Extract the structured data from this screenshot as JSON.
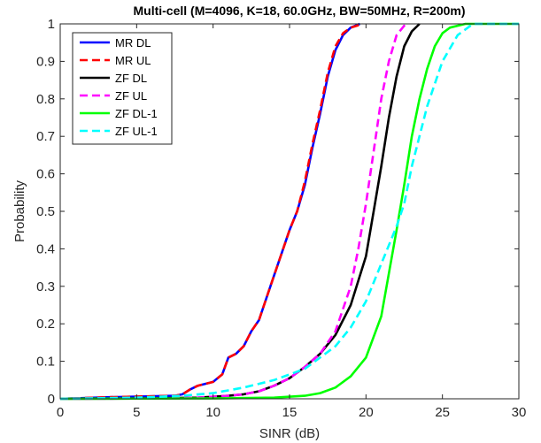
{
  "chart_data": {
    "type": "line",
    "title": "Multi-cell (M=4096, K=18, 60.0GHz, BW=50MHz, R=200m)",
    "xlabel": "SINR (dB)",
    "ylabel": "Probability",
    "xlim": [
      0,
      30
    ],
    "ylim": [
      0,
      1
    ],
    "xticks": [
      "0",
      "5",
      "10",
      "15",
      "20",
      "25",
      "30"
    ],
    "yticks": [
      "0",
      "0.1",
      "0.2",
      "0.3",
      "0.4",
      "0.5",
      "0.6",
      "0.7",
      "0.8",
      "0.9",
      "1"
    ],
    "grid": false,
    "legend_position": "top-left",
    "series": [
      {
        "name": "MR DL",
        "color": "#0000ff",
        "dash": "solid",
        "points": [
          [
            0,
            0
          ],
          [
            3,
            0.004
          ],
          [
            5,
            0.006
          ],
          [
            7.5,
            0.008
          ],
          [
            8,
            0.012
          ],
          [
            8.5,
            0.025
          ],
          [
            9,
            0.035
          ],
          [
            10,
            0.045
          ],
          [
            10.6,
            0.065
          ],
          [
            11,
            0.11
          ],
          [
            11.5,
            0.12
          ],
          [
            12,
            0.14
          ],
          [
            12.5,
            0.18
          ],
          [
            13,
            0.21
          ],
          [
            13.5,
            0.27
          ],
          [
            14,
            0.33
          ],
          [
            14.5,
            0.39
          ],
          [
            15,
            0.45
          ],
          [
            15.5,
            0.5
          ],
          [
            16,
            0.57
          ],
          [
            16.5,
            0.67
          ],
          [
            17,
            0.76
          ],
          [
            17.5,
            0.86
          ],
          [
            18,
            0.93
          ],
          [
            18.5,
            0.97
          ],
          [
            19,
            0.99
          ],
          [
            19.6,
            1
          ]
        ]
      },
      {
        "name": "MR UL",
        "color": "#ff0000",
        "dash": "dash",
        "points": [
          [
            0,
            0
          ],
          [
            3,
            0.004
          ],
          [
            5,
            0.006
          ],
          [
            7.5,
            0.008
          ],
          [
            8,
            0.012
          ],
          [
            8.5,
            0.025
          ],
          [
            9,
            0.035
          ],
          [
            10,
            0.045
          ],
          [
            10.6,
            0.065
          ],
          [
            11,
            0.11
          ],
          [
            11.5,
            0.12
          ],
          [
            12,
            0.14
          ],
          [
            12.5,
            0.18
          ],
          [
            13,
            0.21
          ],
          [
            13.5,
            0.27
          ],
          [
            14,
            0.33
          ],
          [
            14.5,
            0.39
          ],
          [
            15,
            0.45
          ],
          [
            15.5,
            0.5
          ],
          [
            16,
            0.58
          ],
          [
            16.5,
            0.68
          ],
          [
            17,
            0.77
          ],
          [
            17.5,
            0.87
          ],
          [
            18,
            0.94
          ],
          [
            18.5,
            0.975
          ],
          [
            19,
            0.99
          ],
          [
            19.8,
            1
          ]
        ]
      },
      {
        "name": "ZF DL",
        "color": "#000000",
        "dash": "solid",
        "points": [
          [
            0,
            0
          ],
          [
            6,
            0.001
          ],
          [
            9,
            0.003
          ],
          [
            11,
            0.008
          ],
          [
            12,
            0.012
          ],
          [
            13,
            0.02
          ],
          [
            14,
            0.035
          ],
          [
            15,
            0.055
          ],
          [
            16,
            0.085
          ],
          [
            17,
            0.12
          ],
          [
            18,
            0.17
          ],
          [
            19,
            0.25
          ],
          [
            20,
            0.38
          ],
          [
            20.5,
            0.5
          ],
          [
            21,
            0.62
          ],
          [
            21.5,
            0.75
          ],
          [
            22,
            0.86
          ],
          [
            22.5,
            0.94
          ],
          [
            23,
            0.98
          ],
          [
            23.5,
            1
          ]
        ]
      },
      {
        "name": "ZF UL",
        "color": "#ff00ff",
        "dash": "dash",
        "points": [
          [
            0,
            0
          ],
          [
            6,
            0.001
          ],
          [
            9,
            0.003
          ],
          [
            11,
            0.008
          ],
          [
            12,
            0.012
          ],
          [
            13,
            0.02
          ],
          [
            14,
            0.035
          ],
          [
            15,
            0.055
          ],
          [
            16,
            0.085
          ],
          [
            17,
            0.12
          ],
          [
            18,
            0.18
          ],
          [
            19,
            0.3
          ],
          [
            19.5,
            0.4
          ],
          [
            20,
            0.52
          ],
          [
            20.5,
            0.66
          ],
          [
            21,
            0.8
          ],
          [
            21.5,
            0.9
          ],
          [
            22,
            0.97
          ],
          [
            22.6,
            1
          ]
        ]
      },
      {
        "name": "ZF DL-1",
        "color": "#00ff00",
        "dash": "solid",
        "points": [
          [
            0,
            0
          ],
          [
            10,
            0.001
          ],
          [
            14,
            0.003
          ],
          [
            16,
            0.008
          ],
          [
            17,
            0.015
          ],
          [
            18,
            0.03
          ],
          [
            19,
            0.06
          ],
          [
            20,
            0.11
          ],
          [
            21,
            0.22
          ],
          [
            22,
            0.45
          ],
          [
            22.5,
            0.57
          ],
          [
            23,
            0.7
          ],
          [
            23.5,
            0.8
          ],
          [
            24,
            0.88
          ],
          [
            24.5,
            0.94
          ],
          [
            25,
            0.975
          ],
          [
            25.5,
            0.99
          ],
          [
            26.5,
            1
          ],
          [
            30,
            1
          ]
        ]
      },
      {
        "name": "ZF UL-1",
        "color": "#00ffff",
        "dash": "dash",
        "points": [
          [
            0,
            0
          ],
          [
            5,
            0.003
          ],
          [
            8,
            0.008
          ],
          [
            10,
            0.015
          ],
          [
            12,
            0.03
          ],
          [
            14,
            0.05
          ],
          [
            16,
            0.08
          ],
          [
            18,
            0.14
          ],
          [
            19,
            0.19
          ],
          [
            20,
            0.26
          ],
          [
            21,
            0.36
          ],
          [
            22,
            0.46
          ],
          [
            22.5,
            0.52
          ],
          [
            23,
            0.62
          ],
          [
            24,
            0.78
          ],
          [
            25,
            0.9
          ],
          [
            26,
            0.97
          ],
          [
            27,
            1
          ],
          [
            30,
            1
          ]
        ]
      }
    ]
  }
}
